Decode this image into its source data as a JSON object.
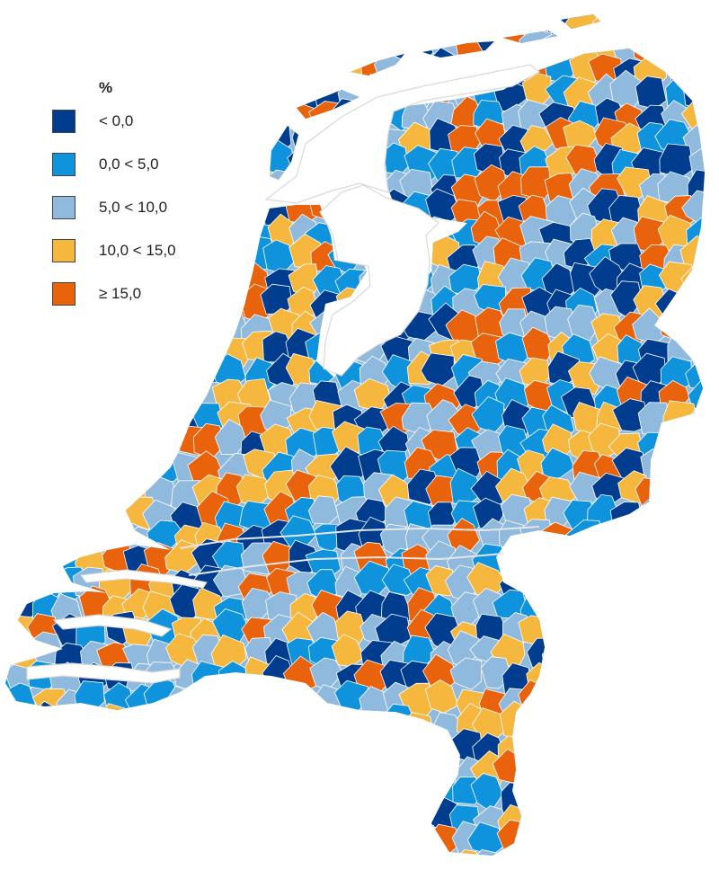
{
  "legend": {
    "title": "%",
    "classes": [
      {
        "label": "< 0,0",
        "color": "#003d8f"
      },
      {
        "label": "0,0 < 5,0",
        "color": "#0f93dc"
      },
      {
        "label": "5,0 < 10,0",
        "color": "#8fbade"
      },
      {
        "label": "10,0 < 15,0",
        "color": "#f6b73f"
      },
      {
        "label": "≥ 15,0",
        "color": "#e8630c"
      }
    ]
  },
  "colors": {
    "water": "#ffffff",
    "land_base": "#8fbade",
    "border": "#ffffff",
    "inland_water_lines": "#d9d9d9"
  }
}
